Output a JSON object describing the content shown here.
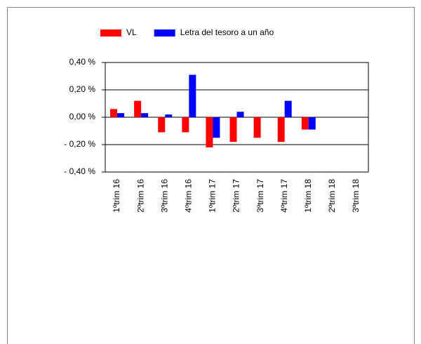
{
  "chart_data": {
    "type": "bar",
    "categories": [
      "1ºtrim 16",
      "2ºtrim 16",
      "3ºtrim 16",
      "4ºtrim 16",
      "1ºtrim 17",
      "2ºtrim 17",
      "3ºtrim 17",
      "4ºtrim 17",
      "1ºtrim 18",
      "2ºtrim 18",
      "3ºtrim 18"
    ],
    "series": [
      {
        "name": "VL",
        "color": "#ff0000",
        "values": [
          0.06,
          0.12,
          -0.11,
          -0.11,
          -0.22,
          -0.18,
          -0.15,
          -0.18,
          -0.09,
          null,
          null
        ]
      },
      {
        "name": "Letra del tesoro a un año",
        "color": "#0000ff",
        "values": [
          0.03,
          0.03,
          0.02,
          0.31,
          -0.15,
          0.04,
          null,
          0.12,
          -0.09,
          null,
          null
        ]
      }
    ],
    "ylim": [
      -0.4,
      0.4
    ],
    "yticks": [
      {
        "value": -0.4,
        "label": "- 0,40 %"
      },
      {
        "value": -0.2,
        "label": "- 0,20 %"
      },
      {
        "value": 0,
        "label": "0,00 %"
      },
      {
        "value": 0.2,
        "label": "0,20 %"
      },
      {
        "value": 0.4,
        "label": "0,40 %"
      }
    ],
    "grid": true
  }
}
